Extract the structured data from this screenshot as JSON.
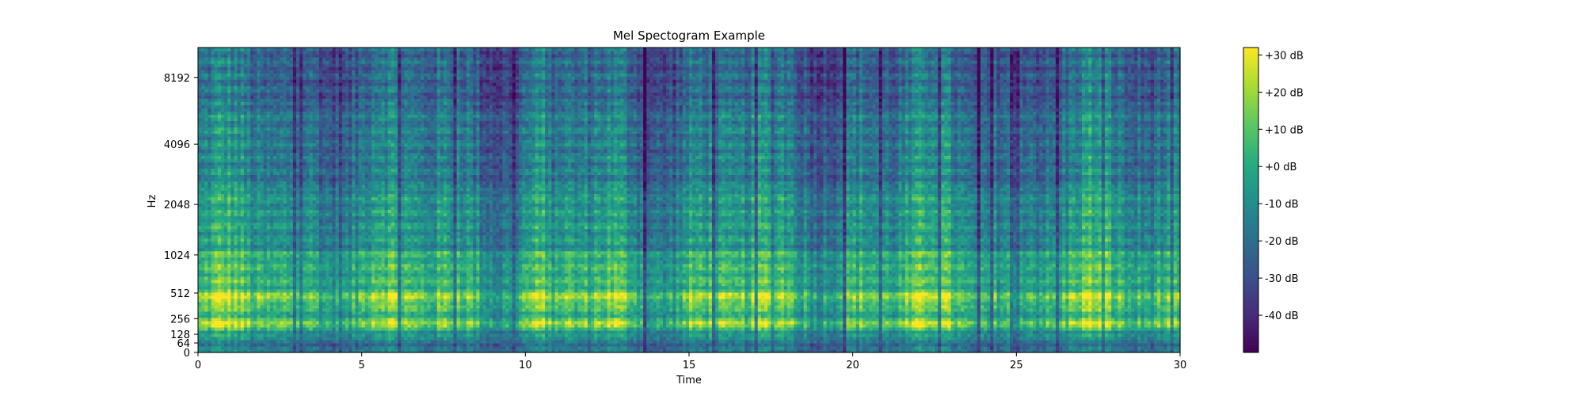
{
  "chart_data": {
    "type": "heatmap",
    "title": "Mel Spectogram Example",
    "xlabel": "Time",
    "ylabel": "Hz",
    "xlim": [
      0,
      30
    ],
    "x_ticks": [
      0,
      5,
      10,
      15,
      20,
      25,
      30
    ],
    "x_tick_labels": [
      "0",
      "5",
      "10",
      "15",
      "20",
      "25",
      "30"
    ],
    "y_scale": "mel",
    "y_ticks_hz": [
      0,
      64,
      128,
      256,
      512,
      1024,
      2048,
      4096,
      8192
    ],
    "y_tick_labels": [
      "0",
      "64",
      "128",
      "256",
      "512",
      "1024",
      "2048",
      "4096",
      "8192"
    ],
    "y_max_hz": 11025,
    "colormap": "viridis",
    "colormap_stops": [
      "#440154",
      "#472c7a",
      "#3b518b",
      "#2c718e",
      "#21908d",
      "#27ad81",
      "#5cc863",
      "#aadc32",
      "#fde725"
    ],
    "colorbar": {
      "range_db": [
        -50,
        32
      ],
      "ticks_db": [
        30,
        20,
        10,
        0,
        -10,
        -20,
        -30,
        -40
      ],
      "tick_labels": [
        "+30 dB",
        "+20 dB",
        "+10 dB",
        "+0 dB",
        "-10 dB",
        "-20 dB",
        "-30 dB",
        "-40 dB"
      ]
    },
    "grid": false,
    "note": "Spectrogram intensity pattern is approximated (energy concentrated ~128-1024 Hz, loud bands near 200 and 450 Hz, weaker above 2048 Hz)."
  }
}
